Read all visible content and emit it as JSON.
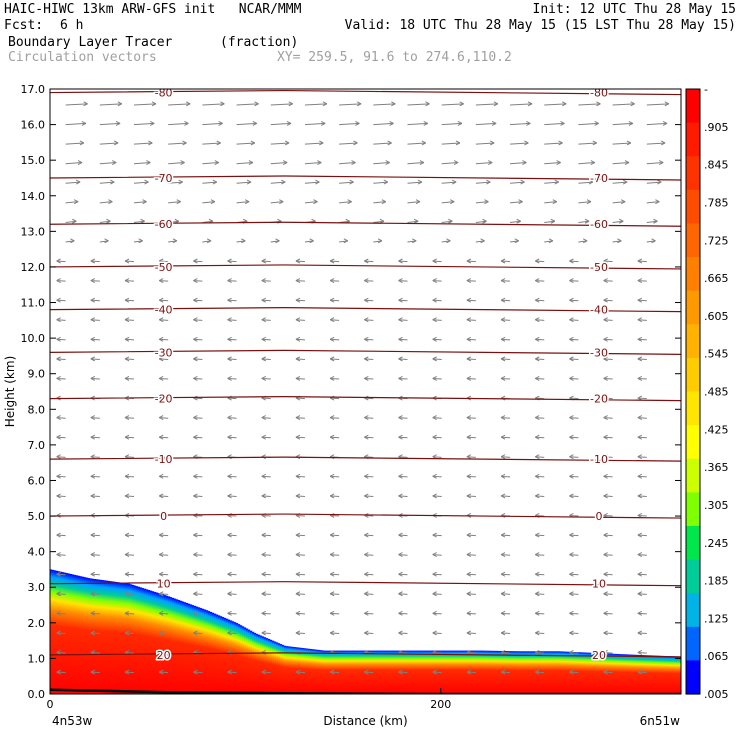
{
  "header": {
    "model_line": "HAIC-HIWC 13km ARW-GFS init   NCAR/MMM",
    "init": "Init: 12 UTC Thu 28 May 15",
    "fcst_label": "Fcst:",
    "fcst_value": "6 h",
    "valid": "Valid: 18 UTC Thu 28 May 15 (15 LST Thu 28 May 15)",
    "field_name": "Boundary Layer Tracer",
    "field_units": "(fraction)",
    "overlay_name": "Circulation vectors",
    "xy_range": "XY= 259.5, 91.6 to 274.6,110.2"
  },
  "axes": {
    "ylabel": "Height (km)",
    "xlabel": "Distance (km)",
    "x_left_label": "4n53w",
    "x_right_label": "6n51w"
  },
  "colors": {
    "isotherm": "#7a1010",
    "vector": "#808080",
    "terrain": "#000000"
  },
  "chart_data": {
    "type": "heatmap",
    "title": "Boundary Layer Tracer",
    "units": "(fraction)",
    "xlabel": "Distance (km)",
    "ylabel": "Height (km)",
    "xlim": [
      0,
      323
    ],
    "ylim": [
      0,
      17
    ],
    "x_ticks": [
      0,
      200
    ],
    "y_ticks": [
      "0.0",
      "1.0",
      "2.0",
      "3.0",
      "4.0",
      "5.0",
      "6.0",
      "7.0",
      "8.0",
      "9.0",
      "10.0",
      "11.0",
      "12.0",
      "13.0",
      "14.0",
      "15.0",
      "16.0",
      "17.0"
    ],
    "colorbar": {
      "labels": [
        "-",
        ".905",
        ".845",
        ".785",
        ".725",
        ".665",
        ".605",
        ".545",
        ".485",
        ".425",
        ".365",
        ".305",
        ".245",
        ".185",
        ".125",
        ".065",
        ".005"
      ],
      "colors": [
        "#ff0000",
        "#ff1a00",
        "#ff3300",
        "#ff4d00",
        "#ff6600",
        "#ff8000",
        "#ff9900",
        "#ffb300",
        "#ffcc00",
        "#ffe600",
        "#ffff00",
        "#ccff00",
        "#80ff00",
        "#00e64d",
        "#00cc99",
        "#00b3e6",
        "#0066ff",
        "#0000ff"
      ]
    },
    "tracer_top_km": {
      "x": [
        0,
        20,
        40,
        60,
        80,
        95,
        105,
        120,
        140,
        160,
        180,
        200,
        220,
        240,
        260,
        280,
        300,
        323
      ],
      "top": [
        3.5,
        3.25,
        3.1,
        2.75,
        2.35,
        2.0,
        1.7,
        1.35,
        1.22,
        1.22,
        1.22,
        1.22,
        1.22,
        1.2,
        1.2,
        1.15,
        1.1,
        1.05
      ]
    },
    "terrain_km": {
      "x": [
        0,
        60,
        120,
        200,
        323
      ],
      "height": [
        0.12,
        0.05,
        0.02,
        0.0,
        0.0
      ]
    },
    "temperature_contours_c": [
      {
        "value": 20,
        "label": "20",
        "height_km": 1.1
      },
      {
        "value": 10,
        "label": "10",
        "height_km": 3.1
      },
      {
        "value": 0,
        "label": "0",
        "height_km": 5.0
      },
      {
        "value": -10,
        "label": "-10",
        "height_km": 6.6
      },
      {
        "value": -20,
        "label": "-20",
        "height_km": 8.3
      },
      {
        "value": -30,
        "label": "-30",
        "height_km": 9.6
      },
      {
        "value": -40,
        "label": "-40",
        "height_km": 10.8
      },
      {
        "value": -50,
        "label": "-50",
        "height_km": 12.0
      },
      {
        "value": -60,
        "label": "-60",
        "height_km": 13.2
      },
      {
        "value": -70,
        "label": "-70",
        "height_km": 14.5
      },
      {
        "value": -80,
        "label": "-80",
        "height_km": 16.9
      }
    ],
    "circulation_vectors": {
      "upper_levels_km_above": 12.5,
      "upper_direction": "eastward",
      "lower_direction": "westward"
    }
  }
}
